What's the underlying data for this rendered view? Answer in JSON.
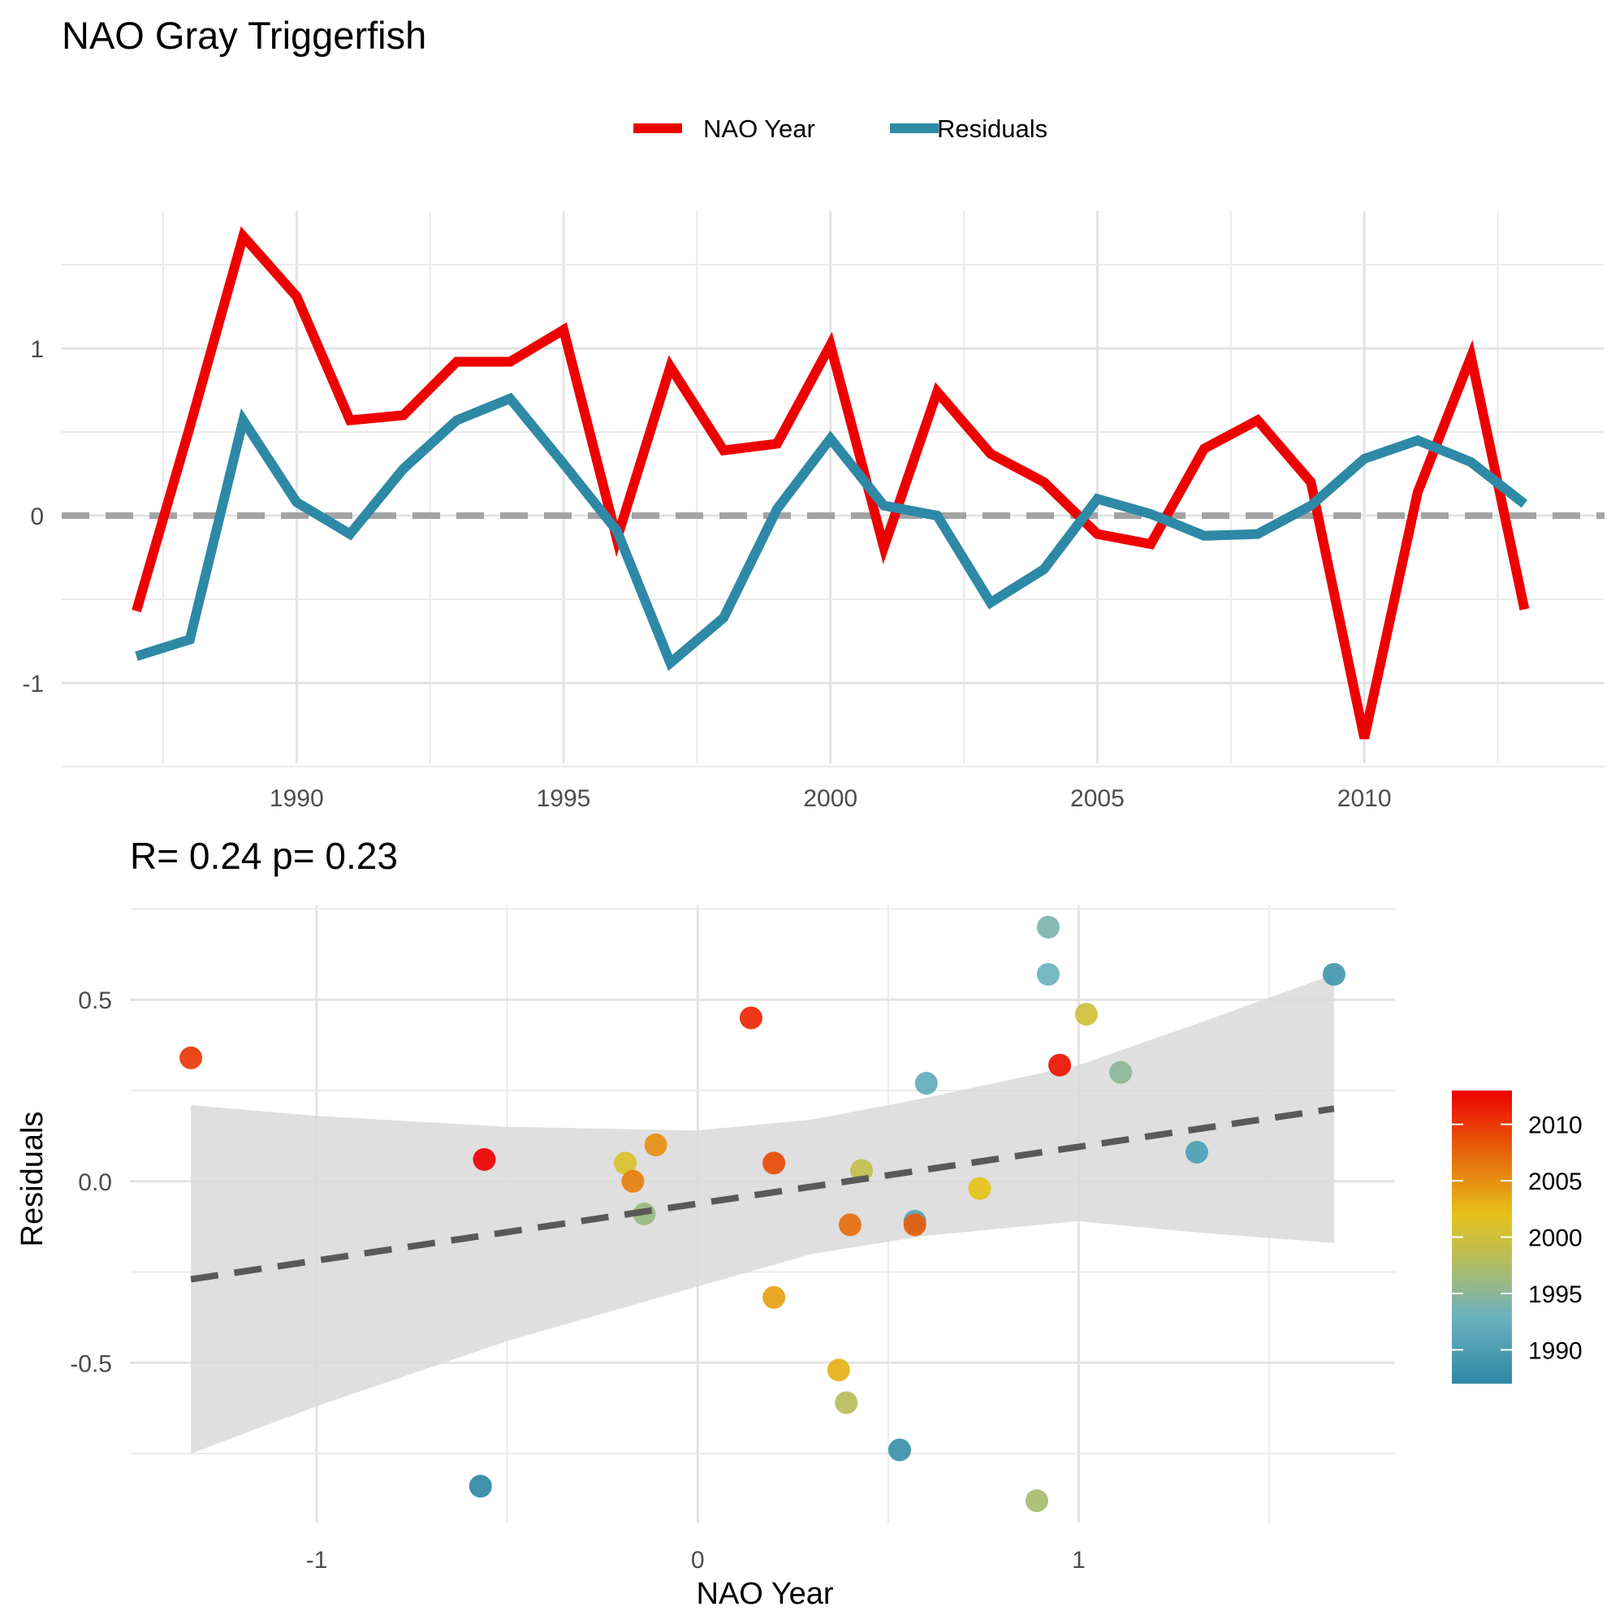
{
  "page": {
    "title": "NAO  Gray Triggerfish"
  },
  "chart_data": [
    {
      "type": "line",
      "legend": {
        "placement": "top",
        "entries": [
          "NAO Year",
          "Residuals"
        ]
      },
      "x": [
        1987,
        1988,
        1989,
        1990,
        1991,
        1992,
        1993,
        1994,
        1995,
        1996,
        1997,
        1998,
        1999,
        2000,
        2001,
        2002,
        2003,
        2004,
        2005,
        2006,
        2007,
        2008,
        2009,
        2010,
        2011,
        2012,
        2013
      ],
      "series": [
        {
          "name": "NAO Year",
          "color": "#ee0000",
          "values": [
            -0.57,
            0.53,
            1.67,
            1.31,
            0.57,
            0.6,
            0.92,
            0.92,
            1.11,
            -0.14,
            0.89,
            0.39,
            0.43,
            1.02,
            -0.19,
            0.74,
            0.37,
            0.2,
            -0.11,
            -0.17,
            0.4,
            0.57,
            0.2,
            -1.33,
            0.14,
            0.95,
            -0.56
          ]
        },
        {
          "name": "Residuals",
          "color": "#2e89a6",
          "values": [
            -0.84,
            -0.74,
            0.57,
            0.08,
            -0.11,
            0.28,
            0.57,
            0.7,
            0.31,
            -0.09,
            -0.88,
            -0.61,
            0.04,
            0.46,
            0.06,
            0.0,
            -0.52,
            -0.32,
            0.1,
            0.01,
            -0.12,
            -0.11,
            0.06,
            0.34,
            0.45,
            0.32,
            0.07
          ]
        }
      ],
      "reference_line": {
        "y": 0,
        "style": "dashed",
        "color": "#a3a3a3"
      },
      "xticks": [
        1990,
        1995,
        2000,
        2005,
        2010
      ],
      "yticks": [
        -1,
        0,
        1
      ],
      "xlim": [
        1985.6,
        2014.5
      ],
      "ylim": [
        -1.48,
        1.82
      ],
      "grid": true
    },
    {
      "type": "scatter",
      "title": "R= 0.24  p= 0.23",
      "xlabel": "NAO Year",
      "ylabel": "Residuals",
      "xticks": [
        -1,
        0,
        1
      ],
      "yticks": [
        "-0.5",
        "0.0",
        "0.5"
      ],
      "ytick_values": [
        -0.5,
        0,
        0.5
      ],
      "xlim": [
        -1.49,
        1.83
      ],
      "ylim": [
        -0.94,
        0.76
      ],
      "grid": true,
      "points": [
        {
          "year": 1987,
          "x": -0.57,
          "y": -0.84
        },
        {
          "year": 1988,
          "x": 0.53,
          "y": -0.74
        },
        {
          "year": 1989,
          "x": 1.67,
          "y": 0.57
        },
        {
          "year": 1990,
          "x": 1.31,
          "y": 0.08
        },
        {
          "year": 1991,
          "x": 0.57,
          "y": -0.11
        },
        {
          "year": 1992,
          "x": 0.6,
          "y": 0.27
        },
        {
          "year": 1993,
          "x": 0.92,
          "y": 0.57
        },
        {
          "year": 1994,
          "x": 0.92,
          "y": 0.7
        },
        {
          "year": 1995,
          "x": 1.11,
          "y": 0.3
        },
        {
          "year": 1996,
          "x": -0.14,
          "y": -0.09
        },
        {
          "year": 1997,
          "x": 0.89,
          "y": -0.88
        },
        {
          "year": 1998,
          "x": 0.39,
          "y": -0.61
        },
        {
          "year": 1999,
          "x": 0.43,
          "y": 0.03
        },
        {
          "year": 2000,
          "x": 1.02,
          "y": 0.46
        },
        {
          "year": 2001,
          "x": -0.19,
          "y": 0.05
        },
        {
          "year": 2002,
          "x": 0.74,
          "y": -0.02
        },
        {
          "year": 2003,
          "x": 0.37,
          "y": -0.52
        },
        {
          "year": 2004,
          "x": 0.2,
          "y": -0.32
        },
        {
          "year": 2005,
          "x": -0.11,
          "y": 0.1
        },
        {
          "year": 2006,
          "x": -0.17,
          "y": 0.0
        },
        {
          "year": 2007,
          "x": 0.4,
          "y": -0.12
        },
        {
          "year": 2008,
          "x": 0.57,
          "y": -0.12
        },
        {
          "year": 2009,
          "x": 0.2,
          "y": 0.05
        },
        {
          "year": 2010,
          "x": -1.33,
          "y": 0.34
        },
        {
          "year": 2011,
          "x": 0.14,
          "y": 0.45
        },
        {
          "year": 2012,
          "x": 0.95,
          "y": 0.32
        },
        {
          "year": 2013,
          "x": -0.56,
          "y": 0.06
        }
      ],
      "trend": {
        "x0": -1.33,
        "y0": -0.27,
        "x1": 1.67,
        "y1": 0.2,
        "style": "dashed",
        "color": "#595959"
      },
      "ribbon": {
        "x": [
          -1.33,
          -1.0,
          -0.5,
          0.0,
          0.3,
          0.6,
          1.0,
          1.3,
          1.67
        ],
        "upper": [
          0.21,
          0.18,
          0.15,
          0.14,
          0.17,
          0.23,
          0.32,
          0.43,
          0.57
        ],
        "lower": [
          -0.75,
          -0.62,
          -0.44,
          -0.29,
          -0.2,
          -0.15,
          -0.11,
          -0.14,
          -0.17
        ],
        "color": "#d9d9d9"
      },
      "colorbar": {
        "title": "",
        "ticks": [
          1990,
          1995,
          2000,
          2005,
          2010
        ],
        "range": [
          1987,
          2013
        ],
        "stops": [
          {
            "year": 1987,
            "color": "#2e89a6"
          },
          {
            "year": 1993,
            "color": "#6db2bf"
          },
          {
            "year": 1998,
            "color": "#b7bd5c"
          },
          {
            "year": 2002,
            "color": "#e6c21a"
          },
          {
            "year": 2008,
            "color": "#e65c0a"
          },
          {
            "year": 2013,
            "color": "#ee0000"
          }
        ]
      }
    }
  ]
}
